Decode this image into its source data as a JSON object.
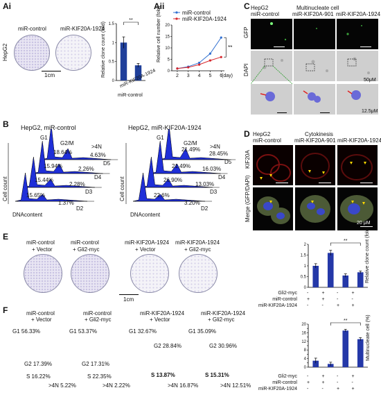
{
  "panels": {
    "Ai": "Ai",
    "Aii": "Aii",
    "B": "B",
    "C": "C",
    "D": "D",
    "E": "E",
    "F": "F"
  },
  "A": {
    "cell_line": "HepG2",
    "dish_labels": [
      "miR-control",
      "miR-KIF20A-1924"
    ],
    "scale": "1cm",
    "bar_ylabel": "Relative clone count (fold)",
    "bar_xlabels": [
      "miR-control",
      "miR-KIF20A-1924"
    ],
    "sig": "**",
    "line_ylabel": "Relative cell number (fold)",
    "line_xlabel": "(day)",
    "legend": [
      "miR-control",
      "miR-KIF20A-1924"
    ],
    "line_sig": "**"
  },
  "B": {
    "left_title": "HepG2, miR-control",
    "right_title": "HepG2, miR-KIF20A-1924",
    "ylabel": "Cell count",
    "xlabel": "DNAcontent",
    "g1": "G1",
    "g2m": "G2/M",
    "gt4n": ">4N",
    "days": [
      "D5",
      "D4",
      "D3",
      "D2"
    ],
    "left_g2": [
      "18.64%",
      "15.94%",
      "15.44%",
      "15.65%"
    ],
    "left_4n": [
      "4.63%",
      "2.26%",
      "2.28%",
      "1.37%"
    ],
    "right_g2": [
      "21.49%",
      "21.49%",
      "26.90%",
      "22.6%"
    ],
    "right_4n": [
      "28.45%",
      "16.03%",
      "13.03%",
      "3.20%"
    ]
  },
  "C": {
    "cell_line": "HepG2",
    "group_title": "Multinucleate cell",
    "cols": [
      "miR-control",
      "miR-KIF20A-901",
      "miR-KIF20A-1924"
    ],
    "rows": [
      "GFP",
      "DAPI"
    ],
    "scale1": "50μM",
    "scale2": "12.5μM"
  },
  "D": {
    "cell_line": "HepG2",
    "group_title": "Cytokinesis",
    "cols": [
      "miR-control",
      "miR-KIF20A-901",
      "miR-KIF20A-1924"
    ],
    "rows": [
      "KIF20A",
      "Merge (GFP/DAPI)"
    ],
    "scale": "20 μM"
  },
  "E": {
    "dish_labels": [
      [
        "miR-control",
        "+ Vector"
      ],
      [
        "miR-control",
        "+ Gli2-myc"
      ],
      [
        "miR-KIF20A-1924",
        "+ Vector"
      ],
      [
        "miR-KIF20A-1924",
        "+ Gli2-myc"
      ]
    ],
    "scale": "1cm",
    "bar_ylabel": "Relative clone count (fold)",
    "sig": "**",
    "table_rows": [
      "Gli2-myc",
      "miR-control",
      "miR-KIF20A-1924"
    ],
    "table": [
      [
        "-",
        "+",
        "-",
        "+"
      ],
      [
        "+",
        "+",
        "-",
        "-"
      ],
      [
        "-",
        "-",
        "+",
        "+"
      ]
    ]
  },
  "F": {
    "titles": [
      [
        "miR-control",
        "+ Vector"
      ],
      [
        "miR-control",
        "+ Gli2-myc"
      ],
      [
        "miR-KIF20A-1924",
        "+ Vector"
      ],
      [
        "miR-KIF20A-1924",
        "+ Gli2-myc"
      ]
    ],
    "g1": [
      "G1 56.33%",
      "G1 53.37%",
      "G1 32.67%",
      "G1 35.09%"
    ],
    "g2": [
      "G2 17.39%",
      "G2 17.31%",
      "G2 28.84%",
      "G2 30.96%"
    ],
    "s": [
      "S 16.22%",
      "S 22.35%",
      "S 13.87%",
      "S 15.31%"
    ],
    "gt4n": [
      ">4N  5.22%",
      ">4N  2.22%",
      ">4N  16.87%",
      ">4N  12.51%"
    ],
    "bar_ylabel": "Multinucleate cell (%)",
    "sig": "**",
    "table_rows": [
      "Gli2-myc",
      "miR-control",
      "miR-KIF20A-1924"
    ],
    "table": [
      [
        "-",
        "+",
        "-",
        "+"
      ],
      [
        "+",
        "+",
        "-",
        "-"
      ],
      [
        "-",
        "-",
        "+",
        "+"
      ]
    ]
  },
  "chart_data": [
    {
      "type": "bar",
      "categories": [
        "miR-control",
        "miR-KIF20A-1924"
      ],
      "values": [
        1.0,
        0.4
      ],
      "errors": [
        0.15,
        0.05
      ],
      "ylabel": "Relative clone count (fold)",
      "ylim": [
        0,
        1.5
      ],
      "yticks": [
        0,
        0.5,
        1,
        1.5
      ],
      "annotation": "**"
    },
    {
      "type": "line",
      "x": [
        2,
        3,
        4,
        5,
        6
      ],
      "xlabel": "(day)",
      "ylabel": "Relative cell number (fold)",
      "ylim": [
        0,
        20
      ],
      "yticks": [
        0,
        5,
        10,
        15,
        20
      ],
      "series": [
        {
          "name": "miR-control",
          "values": [
            1,
            1.8,
            3.5,
            7.5,
            14.5
          ],
          "color": "#2f6fd1"
        },
        {
          "name": "miR-KIF20A-1924",
          "values": [
            1,
            1.5,
            2.7,
            4.5,
            6.0
          ],
          "color": "#d6262c"
        }
      ],
      "annotation": "**"
    },
    {
      "type": "bar",
      "categories": [
        "1",
        "2",
        "3",
        "4"
      ],
      "values": [
        1.0,
        1.6,
        0.55,
        0.7
      ],
      "errors": [
        0.1,
        0.12,
        0.08,
        0.06
      ],
      "ylabel": "Relative clone count (fold)",
      "ylim": [
        0,
        2
      ],
      "yticks": [
        0,
        0.5,
        1,
        1.5,
        2
      ],
      "annotation": "**"
    },
    {
      "type": "bar",
      "categories": [
        "1",
        "2",
        "3",
        "4"
      ],
      "values": [
        3.0,
        1.5,
        17.0,
        13.0
      ],
      "errors": [
        1.2,
        0.8,
        0.6,
        0.7
      ],
      "ylabel": "Multinucleate cell (%)",
      "ylim": [
        0,
        20
      ],
      "yticks": [
        0,
        2,
        4,
        6,
        8,
        10,
        12,
        14,
        16,
        18,
        20
      ],
      "annotation": "**"
    }
  ]
}
